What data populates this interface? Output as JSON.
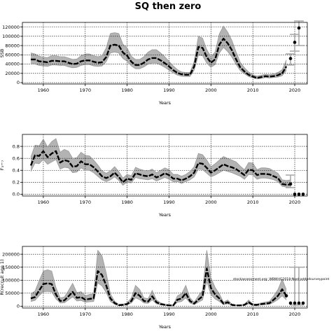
{
  "title": "SQ then zero",
  "annotation": "stockassessment.org: WBWHG2018-Noel-addedsurveypoint",
  "chart_data": [
    {
      "type": "line",
      "name": "ssb",
      "ylabel": "SSB",
      "xlabel": "Years",
      "xlim": [
        1955,
        2023
      ],
      "ylim": [
        -3000,
        130000
      ],
      "xticks": [
        1960,
        1970,
        1980,
        1990,
        2000,
        2010,
        2020
      ],
      "yticks": [
        0,
        20000,
        40000,
        60000,
        80000,
        100000,
        120000
      ],
      "grid": true,
      "x": [
        1957,
        1958,
        1959,
        1960,
        1961,
        1962,
        1963,
        1964,
        1965,
        1966,
        1967,
        1968,
        1969,
        1970,
        1971,
        1972,
        1973,
        1974,
        1975,
        1976,
        1977,
        1978,
        1979,
        1980,
        1981,
        1982,
        1983,
        1984,
        1985,
        1986,
        1987,
        1988,
        1989,
        1990,
        1991,
        1992,
        1993,
        1994,
        1995,
        1996,
        1997,
        1998,
        1999,
        2000,
        2001,
        2002,
        2003,
        2004,
        2005,
        2006,
        2007,
        2008,
        2009,
        2010,
        2011,
        2012,
        2013,
        2014,
        2015,
        2016,
        2017,
        2018
      ],
      "y": [
        50000,
        50000,
        46000,
        45000,
        44000,
        47000,
        47000,
        46000,
        46000,
        43000,
        40000,
        41000,
        46000,
        48000,
        48000,
        45000,
        43000,
        44000,
        55000,
        80000,
        82000,
        80000,
        65000,
        58000,
        45000,
        38000,
        38000,
        43000,
        50000,
        53000,
        53000,
        48000,
        42000,
        35000,
        27000,
        21000,
        18000,
        17000,
        17000,
        35000,
        77000,
        75000,
        55000,
        43000,
        50000,
        82000,
        95000,
        85000,
        70000,
        50000,
        33000,
        24000,
        17000,
        13000,
        10000,
        12000,
        14000,
        13000,
        14000,
        16000,
        20000,
        35000
      ],
      "lower": [
        40000,
        40000,
        37000,
        36000,
        35000,
        38000,
        38000,
        37000,
        37000,
        34000,
        32000,
        33000,
        37000,
        39000,
        39000,
        36000,
        35000,
        36000,
        45000,
        64000,
        66000,
        64000,
        52000,
        46000,
        36000,
        30000,
        30000,
        34000,
        40000,
        42000,
        42000,
        38000,
        33000,
        27000,
        21000,
        16000,
        14000,
        13000,
        13000,
        27000,
        59000,
        58000,
        42000,
        33000,
        39000,
        64000,
        76000,
        67000,
        55000,
        39000,
        26000,
        19000,
        13000,
        10000,
        8000,
        9000,
        11000,
        10000,
        11000,
        12000,
        15000,
        26000
      ],
      "upper": [
        64000,
        62000,
        57000,
        55000,
        54000,
        58000,
        58000,
        56000,
        56000,
        53000,
        50000,
        51000,
        58000,
        62000,
        62000,
        58000,
        56000,
        58000,
        75000,
        106000,
        108000,
        106000,
        83000,
        75000,
        57000,
        50000,
        50000,
        56000,
        66000,
        71000,
        71000,
        64000,
        56000,
        46000,
        36000,
        28000,
        23000,
        22000,
        22000,
        46000,
        100000,
        96000,
        71000,
        56000,
        66000,
        105000,
        122000,
        109000,
        91000,
        66000,
        44000,
        32000,
        23000,
        17000,
        14000,
        16000,
        18000,
        17000,
        19000,
        22000,
        28000,
        49000
      ],
      "points": [
        {
          "x": 2019,
          "y": 52000
        },
        {
          "x": 2020,
          "y": 87000
        },
        {
          "x": 2021,
          "y": 118000
        }
      ],
      "intervals": [
        {
          "x": 2019,
          "low": 38000,
          "high": 62000
        },
        {
          "x": 2020,
          "low": 68000,
          "high": 104000
        },
        {
          "x": 2021,
          "low": 80000,
          "high": 133000
        }
      ]
    },
    {
      "type": "line",
      "name": "fbar",
      "ylabel": "F₃−₇",
      "xlabel": "Years",
      "xlim": [
        1955,
        2023
      ],
      "ylim": [
        -0.03,
        1.0
      ],
      "xticks": [
        1960,
        1970,
        1980,
        1990,
        2000,
        2010,
        2020
      ],
      "yticks": [
        0.0,
        0.2,
        0.4,
        0.6,
        0.8
      ],
      "grid": true,
      "x": [
        1957,
        1958,
        1959,
        1960,
        1961,
        1962,
        1963,
        1964,
        1965,
        1966,
        1967,
        1968,
        1969,
        1970,
        1971,
        1972,
        1973,
        1974,
        1975,
        1976,
        1977,
        1978,
        1979,
        1980,
        1981,
        1982,
        1983,
        1984,
        1985,
        1986,
        1987,
        1988,
        1989,
        1990,
        1991,
        1992,
        1993,
        1994,
        1995,
        1996,
        1997,
        1998,
        1999,
        2000,
        2001,
        2002,
        2003,
        2004,
        2005,
        2006,
        2007,
        2008,
        2009,
        2010,
        2011,
        2012,
        2013,
        2014,
        2015,
        2016,
        2017,
        2018,
        2019
      ],
      "y": [
        0.48,
        0.65,
        0.64,
        0.72,
        0.62,
        0.68,
        0.72,
        0.53,
        0.57,
        0.55,
        0.46,
        0.47,
        0.55,
        0.5,
        0.5,
        0.45,
        0.38,
        0.3,
        0.27,
        0.3,
        0.36,
        0.29,
        0.2,
        0.26,
        0.24,
        0.35,
        0.33,
        0.31,
        0.3,
        0.33,
        0.28,
        0.31,
        0.35,
        0.32,
        0.26,
        0.26,
        0.23,
        0.26,
        0.3,
        0.36,
        0.52,
        0.51,
        0.44,
        0.36,
        0.4,
        0.45,
        0.5,
        0.47,
        0.45,
        0.42,
        0.37,
        0.32,
        0.41,
        0.4,
        0.32,
        0.34,
        0.34,
        0.33,
        0.3,
        0.27,
        0.17,
        0.16,
        0.16
      ],
      "lower": [
        0.38,
        0.52,
        0.51,
        0.58,
        0.5,
        0.54,
        0.58,
        0.42,
        0.45,
        0.44,
        0.36,
        0.37,
        0.44,
        0.4,
        0.4,
        0.36,
        0.3,
        0.24,
        0.21,
        0.24,
        0.29,
        0.23,
        0.15,
        0.2,
        0.19,
        0.28,
        0.26,
        0.25,
        0.24,
        0.26,
        0.22,
        0.25,
        0.28,
        0.25,
        0.21,
        0.21,
        0.18,
        0.21,
        0.24,
        0.29,
        0.42,
        0.41,
        0.35,
        0.29,
        0.32,
        0.36,
        0.4,
        0.38,
        0.36,
        0.33,
        0.3,
        0.25,
        0.33,
        0.32,
        0.25,
        0.27,
        0.27,
        0.26,
        0.24,
        0.21,
        0.13,
        0.12,
        0.11
      ],
      "upper": [
        0.62,
        0.82,
        0.81,
        0.92,
        0.79,
        0.88,
        0.93,
        0.7,
        0.75,
        0.72,
        0.6,
        0.61,
        0.7,
        0.65,
        0.64,
        0.57,
        0.49,
        0.39,
        0.35,
        0.39,
        0.46,
        0.38,
        0.27,
        0.33,
        0.31,
        0.45,
        0.42,
        0.4,
        0.39,
        0.42,
        0.36,
        0.4,
        0.44,
        0.41,
        0.33,
        0.33,
        0.3,
        0.33,
        0.38,
        0.46,
        0.68,
        0.66,
        0.57,
        0.46,
        0.51,
        0.57,
        0.63,
        0.6,
        0.57,
        0.54,
        0.47,
        0.41,
        0.53,
        0.52,
        0.41,
        0.44,
        0.44,
        0.43,
        0.39,
        0.35,
        0.24,
        0.23,
        0.24
      ],
      "points": [
        {
          "x": 2019,
          "y": 0.17
        },
        {
          "x": 2020,
          "y": 0.0
        },
        {
          "x": 2021,
          "y": 0.0
        },
        {
          "x": 2022,
          "y": 0.0
        }
      ],
      "intervals": [
        {
          "x": 2019,
          "low": 0.11,
          "high": 0.32
        }
      ]
    },
    {
      "type": "line",
      "name": "recruitment",
      "ylabel": "R(recruit age 1)",
      "xlabel": "Years",
      "xlim": [
        1955,
        2023
      ],
      "ylim": [
        -7000,
        230000
      ],
      "xticks": [
        1960,
        1970,
        1980,
        1990,
        2000,
        2010,
        2020
      ],
      "yticks": [
        0,
        50000,
        100000,
        150000,
        200000
      ],
      "grid": true,
      "x": [
        1957,
        1958,
        1959,
        1960,
        1961,
        1962,
        1963,
        1964,
        1965,
        1966,
        1967,
        1968,
        1969,
        1970,
        1971,
        1972,
        1973,
        1974,
        1975,
        1976,
        1977,
        1978,
        1979,
        1980,
        1981,
        1982,
        1983,
        1984,
        1985,
        1986,
        1987,
        1988,
        1989,
        1990,
        1991,
        1992,
        1993,
        1994,
        1995,
        1996,
        1997,
        1998,
        1999,
        2000,
        2001,
        2002,
        2003,
        2004,
        2005,
        2006,
        2007,
        2008,
        2009,
        2010,
        2011,
        2012,
        2013,
        2014,
        2015,
        2016,
        2017,
        2018
      ],
      "y": [
        30000,
        35000,
        60000,
        85000,
        88000,
        85000,
        45000,
        20000,
        22000,
        38000,
        55000,
        32000,
        35000,
        25000,
        28000,
        30000,
        135000,
        120000,
        80000,
        30000,
        12000,
        4000,
        5000,
        8000,
        20000,
        50000,
        40000,
        20000,
        18000,
        38000,
        15000,
        8000,
        5000,
        3000,
        3000,
        25000,
        30000,
        50000,
        20000,
        10000,
        25000,
        38000,
        145000,
        70000,
        45000,
        30000,
        10000,
        15000,
        5000,
        3000,
        3000,
        5000,
        15000,
        5000,
        5000,
        8000,
        10000,
        12000,
        25000,
        40000,
        65000,
        40000
      ],
      "lower": [
        18000,
        22000,
        40000,
        55000,
        57000,
        55000,
        28000,
        12000,
        13000,
        24000,
        36000,
        20000,
        22000,
        15000,
        17000,
        18000,
        90000,
        78000,
        52000,
        18000,
        7000,
        2000,
        3000,
        5000,
        12000,
        32000,
        25000,
        12000,
        11000,
        24000,
        9000,
        5000,
        3000,
        2000,
        2000,
        15000,
        18000,
        32000,
        12000,
        6000,
        15000,
        24000,
        95000,
        45000,
        28000,
        18000,
        6000,
        9000,
        3000,
        2000,
        2000,
        3000,
        9000,
        3000,
        3000,
        5000,
        6000,
        7000,
        15000,
        25000,
        40000,
        24000
      ],
      "upper": [
        48000,
        58000,
        98000,
        135000,
        140000,
        135000,
        72000,
        32000,
        35000,
        60000,
        88000,
        52000,
        56000,
        40000,
        45000,
        48000,
        215000,
        195000,
        128000,
        48000,
        19000,
        7000,
        8000,
        13000,
        32000,
        80000,
        64000,
        32000,
        29000,
        61000,
        24000,
        13000,
        8000,
        5000,
        5000,
        40000,
        48000,
        80000,
        32000,
        16000,
        40000,
        61000,
        215000,
        110000,
        72000,
        48000,
        16000,
        24000,
        8000,
        5000,
        5000,
        8000,
        24000,
        8000,
        8000,
        13000,
        16000,
        19000,
        40000,
        64000,
        104000,
        64000
      ],
      "points": [
        {
          "x": 2018,
          "y": 40000
        },
        {
          "x": 2019,
          "y": 12000
        },
        {
          "x": 2020,
          "y": 12000
        },
        {
          "x": 2021,
          "y": 12000
        },
        {
          "x": 2022,
          "y": 12000
        }
      ],
      "intervals": [
        {
          "x": 2020,
          "low": 5000,
          "high": 150000
        },
        {
          "x": 2021,
          "low": 5000,
          "high": 150000
        }
      ]
    }
  ]
}
